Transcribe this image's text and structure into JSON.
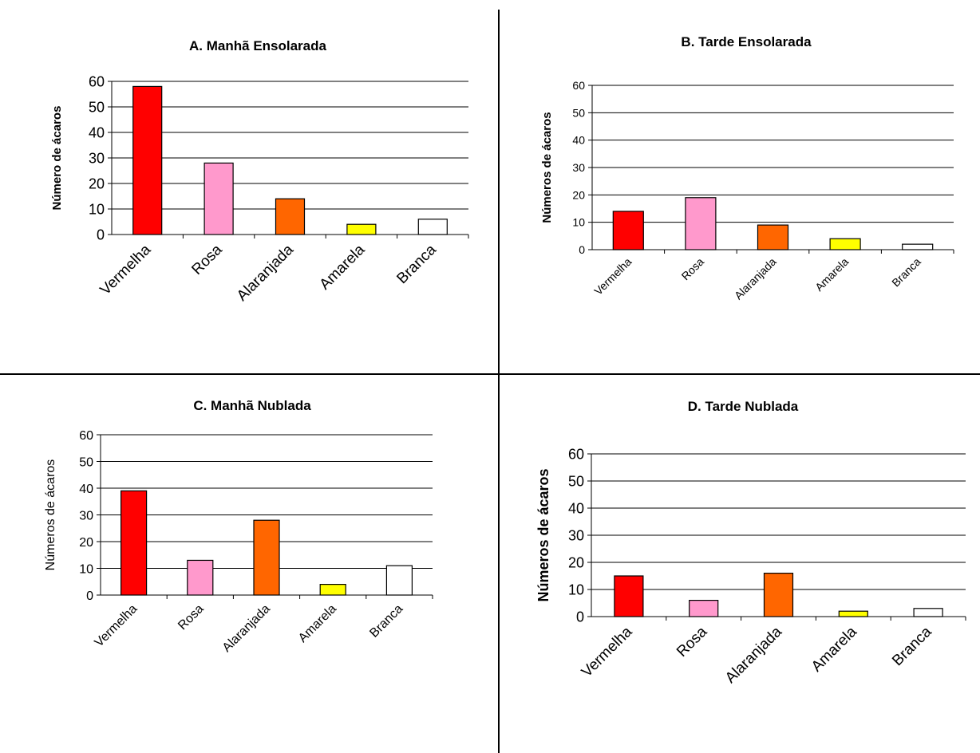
{
  "chart_data": [
    {
      "id": "A",
      "type": "bar",
      "title": "A. Manhã Ensolarada",
      "ylabel": "Número de ácaros",
      "xlabel": "",
      "categories": [
        "Vermelha",
        "Rosa",
        "Alaranjada",
        "Amarela",
        "Branca"
      ],
      "values": [
        58,
        28,
        14,
        4,
        6
      ],
      "colors": [
        "#ff0000",
        "#ff99cc",
        "#ff6600",
        "#ffff00",
        "#ffffff"
      ],
      "ylim": [
        0,
        60
      ],
      "yticks": [
        0,
        10,
        20,
        30,
        40,
        50,
        60
      ],
      "grid": true,
      "legend": "none"
    },
    {
      "id": "B",
      "type": "bar",
      "title": "B. Tarde Ensolarada",
      "ylabel": "Números de ácaros",
      "xlabel": "",
      "categories": [
        "Vermelha",
        "Rosa",
        "Alaranjada",
        "Amarela",
        "Branca"
      ],
      "values": [
        14,
        19,
        9,
        4,
        2
      ],
      "colors": [
        "#ff0000",
        "#ff99cc",
        "#ff6600",
        "#ffff00",
        "#ffffff"
      ],
      "ylim": [
        0,
        60
      ],
      "yticks": [
        0,
        10,
        20,
        30,
        40,
        50,
        60
      ],
      "grid": true,
      "legend": "none"
    },
    {
      "id": "C",
      "type": "bar",
      "title": "C. Manhã Nublada",
      "ylabel": "Números de ácaros",
      "xlabel": "",
      "categories": [
        "Vermelha",
        "Rosa",
        "Alaranjada",
        "Amarela",
        "Branca"
      ],
      "values": [
        39,
        13,
        28,
        4,
        11
      ],
      "colors": [
        "#ff0000",
        "#ff99cc",
        "#ff6600",
        "#ffff00",
        "#ffffff"
      ],
      "ylim": [
        0,
        60
      ],
      "yticks": [
        0,
        10,
        20,
        30,
        40,
        50,
        60
      ],
      "grid": true,
      "legend": "none"
    },
    {
      "id": "D",
      "type": "bar",
      "title": "D. Tarde Nublada",
      "ylabel": "Números de ácaros",
      "xlabel": "",
      "categories": [
        "Vermelha",
        "Rosa",
        "Alaranjada",
        "Amarela",
        "Branca"
      ],
      "values": [
        15,
        6,
        16,
        2,
        3
      ],
      "colors": [
        "#ff0000",
        "#ff99cc",
        "#ff6600",
        "#ffff00",
        "#ffffff"
      ],
      "ylim": [
        0,
        60
      ],
      "yticks": [
        0,
        10,
        20,
        30,
        40,
        50,
        60
      ],
      "grid": true,
      "legend": "none"
    }
  ]
}
